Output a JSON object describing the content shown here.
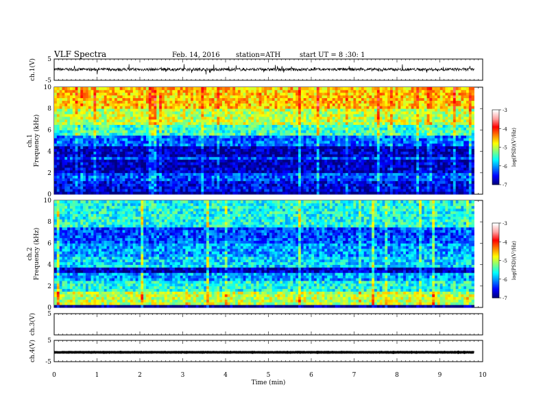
{
  "header": {
    "title": "VLF Spectra",
    "date": "Feb. 14, 2016",
    "station": "station=ATH",
    "start_ut": "start UT =  8 :30: 1"
  },
  "chart_data": [
    {
      "type": "line",
      "id": "ch1-waveform",
      "ylabel": "ch.1(V)",
      "ylim": [
        -5,
        5
      ],
      "yticks": [
        "5",
        "-5"
      ],
      "series": [
        {
          "x_range": [
            0,
            9.8
          ],
          "mean": 0.1,
          "amplitude": 1.4
        }
      ]
    },
    {
      "type": "heatmap",
      "id": "ch1-spectrogram",
      "ylabel": [
        "ch.1",
        "Frequency (kHz)"
      ],
      "ylim": [
        0,
        10
      ],
      "yticks": [
        "0",
        "2",
        "4",
        "6",
        "8",
        "10"
      ],
      "x_range": [
        0,
        9.8
      ],
      "levels_khz": [
        [
          0,
          0.3,
          -7.0
        ],
        [
          0.3,
          1.2,
          -6.6
        ],
        [
          1.2,
          2.0,
          -6.3
        ],
        [
          2.0,
          3.2,
          -6.8
        ],
        [
          3.2,
          3.6,
          -6.3
        ],
        [
          3.6,
          4.6,
          -6.8
        ],
        [
          4.6,
          5.5,
          -6.2
        ],
        [
          5.5,
          6.5,
          -5.5
        ],
        [
          6.5,
          8.0,
          -5.0
        ],
        [
          8.0,
          10.0,
          -4.6
        ]
      ],
      "colorbar": {
        "label": "log(PSD)(V²/Hz)",
        "min": -7,
        "max": -3,
        "ticks": [
          "-3",
          "-4",
          "-5",
          "-6",
          "-7"
        ]
      }
    },
    {
      "type": "heatmap",
      "id": "ch2-spectrogram",
      "ylabel": [
        "ch.2",
        "Frequency (kHz)"
      ],
      "ylim": [
        0,
        10
      ],
      "yticks": [
        "0",
        "2",
        "4",
        "6",
        "8",
        "10"
      ],
      "x_range": [
        0,
        9.8
      ],
      "levels_khz": [
        [
          0,
          0.3,
          -7.0
        ],
        [
          0.3,
          1.5,
          -5.0
        ],
        [
          1.5,
          2.5,
          -5.6
        ],
        [
          2.5,
          3.2,
          -6.0
        ],
        [
          3.2,
          3.8,
          -6.8
        ],
        [
          3.8,
          4.8,
          -5.8
        ],
        [
          4.8,
          6.0,
          -6.0
        ],
        [
          6.0,
          7.5,
          -6.3
        ],
        [
          7.5,
          10.0,
          -5.6
        ]
      ],
      "colorbar": {
        "label": "log(PSD)(V²/Hz)",
        "min": -7,
        "max": -3,
        "ticks": [
          "-3",
          "-4",
          "-5",
          "-6",
          "-7"
        ]
      }
    },
    {
      "type": "line",
      "id": "ch3-waveform",
      "ylabel": "ch.3(V)",
      "ylim": [
        -5,
        5
      ],
      "yticks": [
        "5"
      ],
      "series": [
        {
          "x_range": [
            0,
            9.8
          ],
          "mean": 5.0,
          "amplitude": 0.05
        }
      ]
    },
    {
      "type": "line",
      "id": "ch4-waveform",
      "ylabel": "ch.4(V)",
      "ylim": [
        -5,
        5
      ],
      "yticks": [
        "5",
        "-5"
      ],
      "series": [
        {
          "x_range": [
            0,
            9.8
          ],
          "mean": -0.6,
          "amplitude": 0.15
        }
      ],
      "xlabel": "Time (min)",
      "xlim": [
        0,
        10
      ],
      "xticks": [
        "0",
        "1",
        "2",
        "3",
        "4",
        "5",
        "6",
        "7",
        "8",
        "9",
        "10"
      ]
    }
  ],
  "colors": {
    "colormap": [
      "#000080",
      "#0000ff",
      "#0080ff",
      "#00ffff",
      "#80ff80",
      "#ffff00",
      "#ff8000",
      "#ff0000",
      "#ffa0a0",
      "#ffffff"
    ]
  }
}
